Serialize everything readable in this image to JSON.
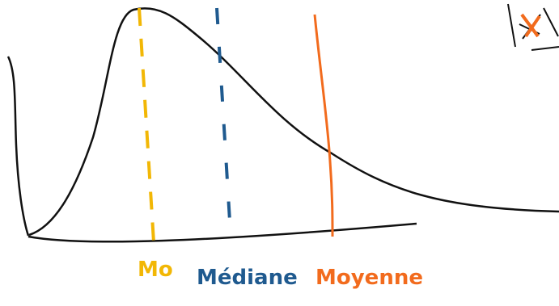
{
  "labels": {
    "mode": "Mo",
    "median": "Médiane",
    "mean": "Moyenne"
  }
}
